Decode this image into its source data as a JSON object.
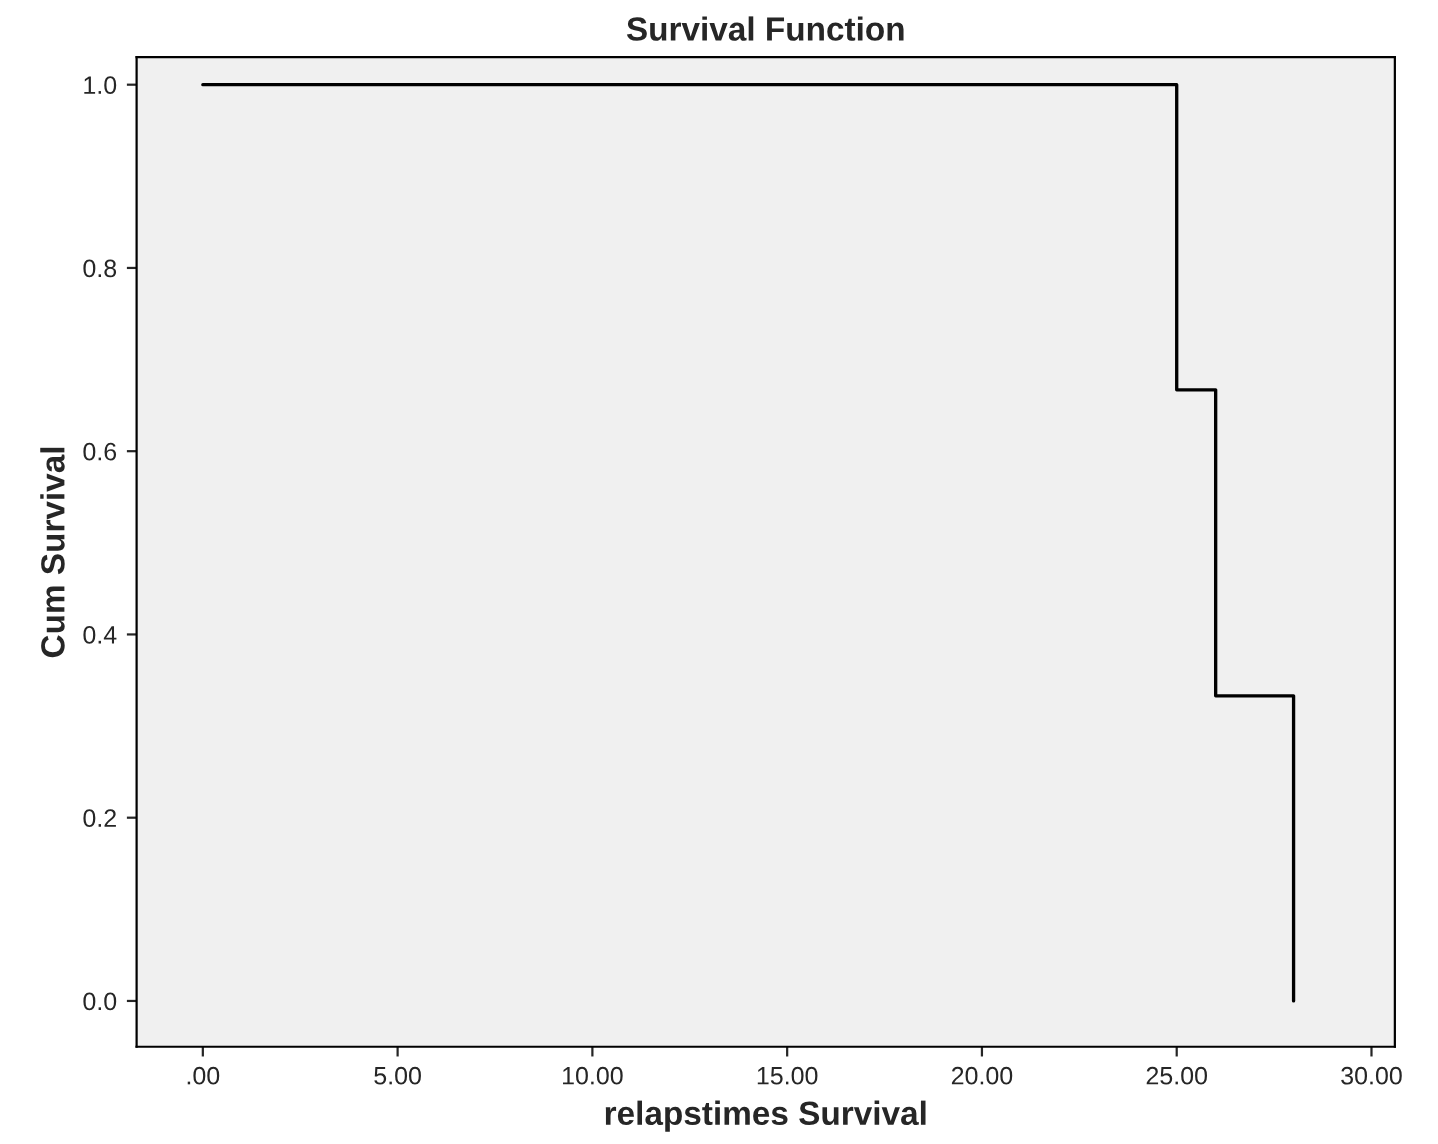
{
  "chart_data": {
    "type": "step",
    "title": "Survival Function",
    "xlabel": "relapstimes Survival",
    "ylabel": "Cum Survival",
    "x": [
      0,
      25,
      26,
      28
    ],
    "series": [
      {
        "color": "#000000",
        "values": [
          1.0,
          0.667,
          0.333,
          0.0
        ]
      }
    ],
    "xlim": [
      -1.7,
      30.6
    ],
    "ylim": [
      -0.05,
      1.03
    ],
    "xticks": [
      {
        "value": 0,
        "label": ".00"
      },
      {
        "value": 5,
        "label": "5.00"
      },
      {
        "value": 10,
        "label": "10.00"
      },
      {
        "value": 15,
        "label": "15.00"
      },
      {
        "value": 20,
        "label": "20.00"
      },
      {
        "value": 25,
        "label": "25.00"
      },
      {
        "value": 30,
        "label": "30.00"
      }
    ],
    "yticks": [
      {
        "value": 0,
        "label": "0.0"
      },
      {
        "value": 0.2,
        "label": "0.2"
      },
      {
        "value": 0.4,
        "label": "0.4"
      },
      {
        "value": 0.6,
        "label": "0.6"
      },
      {
        "value": 0.8,
        "label": "0.8"
      },
      {
        "value": 1.0,
        "label": "1.0"
      }
    ],
    "grid": false,
    "legend": false,
    "marker": "none",
    "line_style": "solid"
  }
}
